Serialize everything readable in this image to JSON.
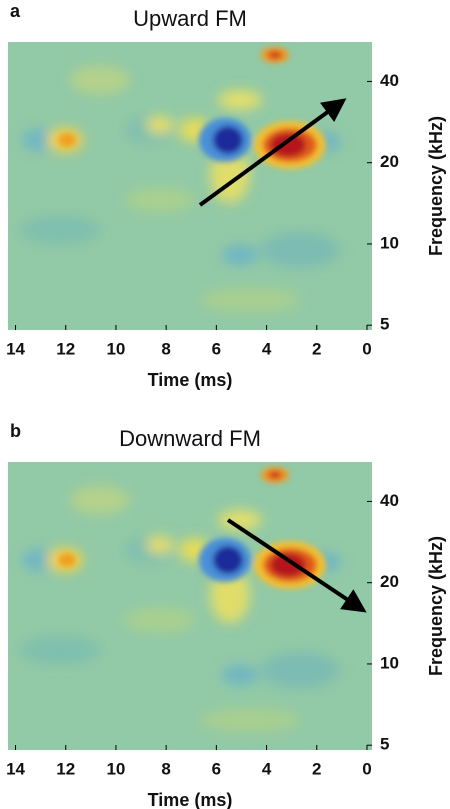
{
  "chart_data": [
    {
      "type": "heatmap",
      "panel_label": "a",
      "title": "Upward FM",
      "x_label": "Time (ms)",
      "y_label": "Frequency (kHz)",
      "xlim": [
        14.3,
        -0.2
      ],
      "xticks": [
        14,
        12,
        10,
        8,
        6,
        4,
        2,
        0
      ],
      "ylim": [
        4.8,
        56
      ],
      "yticks": [
        40,
        20,
        10,
        5
      ],
      "y_log": true
    },
    {
      "type": "heatmap",
      "panel_label": "b",
      "title": "Downward FM",
      "x_label": "Time (ms)",
      "y_label": "Frequency (kHz)",
      "xlim": [
        14.3,
        -0.2
      ],
      "xticks": [
        14,
        12,
        10,
        8,
        6,
        4,
        2,
        0
      ],
      "ylim": [
        4.8,
        56
      ],
      "yticks": [
        40,
        20,
        10,
        5
      ],
      "y_log": true
    }
  ]
}
